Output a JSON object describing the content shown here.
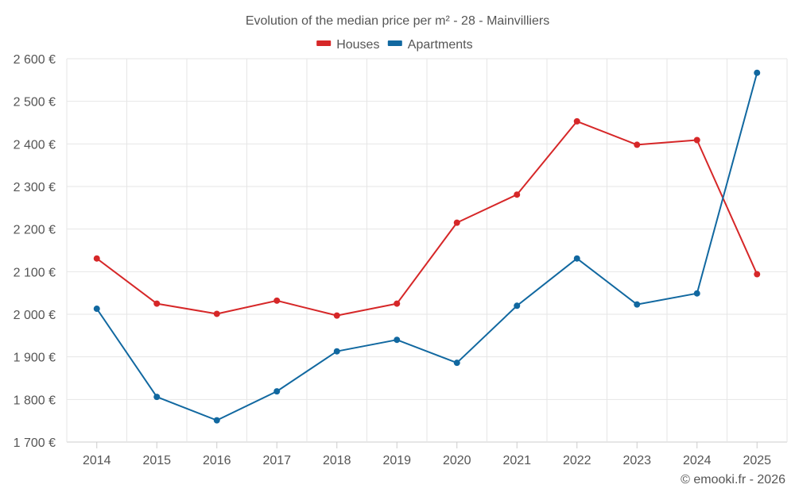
{
  "chart_data": {
    "type": "line",
    "title": "Evolution of the median price per m² - 28 - Mainvilliers",
    "categories": [
      "2014",
      "2015",
      "2016",
      "2017",
      "2018",
      "2019",
      "2020",
      "2021",
      "2022",
      "2023",
      "2024",
      "2025"
    ],
    "series": [
      {
        "name": "Houses",
        "color": "#d62728",
        "values": [
          2131,
          2025,
          2001,
          2032,
          1997,
          2025,
          2215,
          2281,
          2453,
          2398,
          2409,
          2094
        ]
      },
      {
        "name": "Apartments",
        "color": "#1168a0",
        "values": [
          2013,
          1806,
          1751,
          1819,
          1913,
          1940,
          1886,
          2020,
          2131,
          2023,
          2049,
          2567
        ]
      }
    ],
    "ylim": [
      1700,
      2600
    ],
    "yticks": [
      1700,
      1800,
      1900,
      2000,
      2100,
      2200,
      2300,
      2400,
      2500,
      2600
    ],
    "ytick_labels": [
      "1 700 €",
      "1 800 €",
      "1 900 €",
      "2 000 €",
      "2 100 €",
      "2 200 €",
      "2 300 €",
      "2 400 €",
      "2 500 €",
      "2 600 €"
    ],
    "xlabel": "",
    "ylabel": "",
    "grid": true,
    "legend_position": "top-center"
  },
  "credit": "© emooki.fr - 2026"
}
